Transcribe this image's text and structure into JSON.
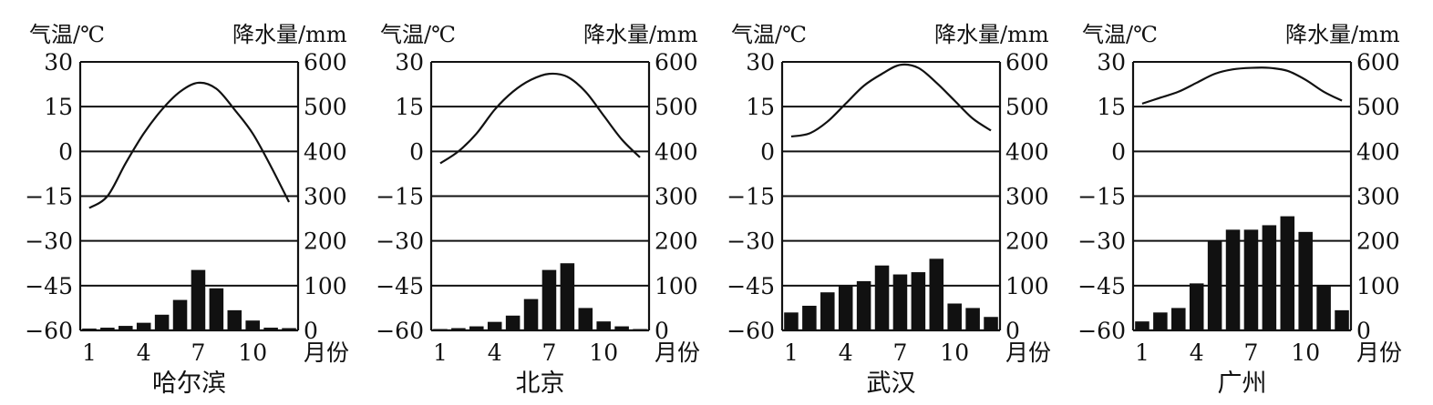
{
  "chart_data": [
    {
      "type": "bar+line",
      "title": "哈尔滨",
      "y_left_label": "气温/℃",
      "y_right_label": "降水量/mm",
      "x_unit": "月份",
      "x_ticks": [
        "1",
        "4",
        "7",
        "10"
      ],
      "y_left_ticks": [
        "30",
        "15",
        "0",
        "−15",
        "−30",
        "−45",
        "−60"
      ],
      "y_right_ticks": [
        "600",
        "500",
        "400",
        "300",
        "200",
        "100",
        "0"
      ],
      "temp_range": [
        -60,
        30
      ],
      "precip_range": [
        0,
        600
      ],
      "months": [
        1,
        2,
        3,
        4,
        5,
        6,
        7,
        8,
        9,
        10,
        11,
        12
      ],
      "temperature": [
        -19,
        -15,
        -4,
        6,
        14,
        20,
        23,
        21,
        14,
        6,
        -5,
        -17
      ],
      "precipitation": [
        4,
        6,
        10,
        17,
        35,
        68,
        135,
        94,
        45,
        22,
        6,
        5
      ]
    },
    {
      "type": "bar+line",
      "title": "北京",
      "y_left_label": "气温/℃",
      "y_right_label": "降水量/mm",
      "x_unit": "月份",
      "x_ticks": [
        "1",
        "4",
        "7",
        "10"
      ],
      "y_left_ticks": [
        "30",
        "15",
        "0",
        "−15",
        "−30",
        "−45",
        "−60"
      ],
      "y_right_ticks": [
        "600",
        "500",
        "400",
        "300",
        "200",
        "100",
        "0"
      ],
      "temp_range": [
        -60,
        30
      ],
      "precip_range": [
        0,
        600
      ],
      "months": [
        1,
        2,
        3,
        4,
        5,
        6,
        7,
        8,
        9,
        10,
        11,
        12
      ],
      "temperature": [
        -4,
        0,
        6,
        14,
        20,
        24,
        26,
        25,
        20,
        12,
        4,
        -2
      ],
      "precipitation": [
        3,
        5,
        9,
        19,
        33,
        70,
        135,
        150,
        50,
        20,
        9,
        3
      ]
    },
    {
      "type": "bar+line",
      "title": "武汉",
      "y_left_label": "气温/℃",
      "y_right_label": "降水量/mm",
      "x_unit": "月份",
      "x_ticks": [
        "1",
        "4",
        "7",
        "10"
      ],
      "y_left_ticks": [
        "30",
        "15",
        "0",
        "−15",
        "−30",
        "−45",
        "−60"
      ],
      "y_right_ticks": [
        "600",
        "500",
        "400",
        "300",
        "200",
        "100",
        "0"
      ],
      "temp_range": [
        -60,
        30
      ],
      "precip_range": [
        0,
        600
      ],
      "months": [
        1,
        2,
        3,
        4,
        5,
        6,
        7,
        8,
        9,
        10,
        11,
        12
      ],
      "temperature": [
        5,
        6,
        10,
        16,
        22,
        26,
        29,
        28,
        23,
        17,
        11,
        7
      ],
      "precipitation": [
        40,
        55,
        85,
        100,
        110,
        145,
        125,
        130,
        160,
        60,
        50,
        30
      ]
    },
    {
      "type": "bar+line",
      "title": "广州",
      "y_left_label": "气温/℃",
      "y_right_label": "降水量/mm",
      "x_unit": "月份",
      "x_ticks": [
        "1",
        "4",
        "7",
        "10"
      ],
      "y_left_ticks": [
        "30",
        "15",
        "0",
        "−15",
        "−30",
        "−45",
        "−60"
      ],
      "y_right_ticks": [
        "600",
        "500",
        "400",
        "300",
        "200",
        "100",
        "0"
      ],
      "temp_range": [
        -60,
        30
      ],
      "precip_range": [
        0,
        600
      ],
      "months": [
        1,
        2,
        3,
        4,
        5,
        6,
        7,
        8,
        9,
        10,
        11,
        12
      ],
      "temperature": [
        16,
        18,
        20,
        23,
        26,
        27.5,
        28,
        28,
        27,
        24,
        20,
        17
      ],
      "precipitation": [
        20,
        40,
        50,
        105,
        200,
        225,
        225,
        235,
        255,
        220,
        100,
        45
      ]
    }
  ]
}
